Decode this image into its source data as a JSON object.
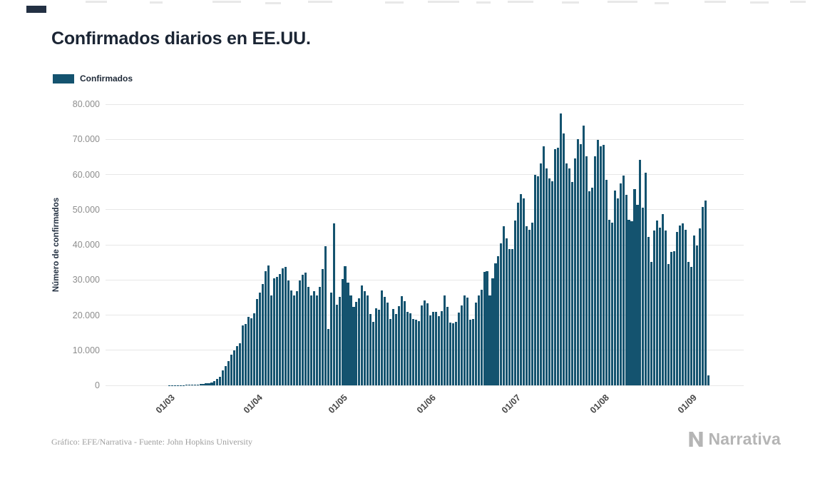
{
  "header": {
    "title": "Confirmados diarios en EE.UU."
  },
  "legend": {
    "label": "Confirmados",
    "swatch_color": "#14536f"
  },
  "chart_data": {
    "type": "bar",
    "title": "Confirmados diarios en EE.UU.",
    "ylabel": "Número de confirmados",
    "xlabel": "",
    "legend": [
      "Confirmados"
    ],
    "legend_position": "top-left",
    "grid": "horizontal",
    "ylim": [
      0,
      80000
    ],
    "bar_color": "#14536f",
    "grid_color": "#e7e7e7",
    "y_ticks": [
      {
        "value": 0,
        "label": "0"
      },
      {
        "value": 10000,
        "label": "10.000"
      },
      {
        "value": 20000,
        "label": "20.000"
      },
      {
        "value": 30000,
        "label": "30.000"
      },
      {
        "value": 40000,
        "label": "40.000"
      },
      {
        "value": 50000,
        "label": "50.000"
      },
      {
        "value": 60000,
        "label": "60.000"
      },
      {
        "value": 70000,
        "label": "70.000"
      },
      {
        "value": 80000,
        "label": "80.000"
      }
    ],
    "x_ticks": [
      {
        "label": "01/03",
        "day_index": 15
      },
      {
        "label": "01/04",
        "day_index": 46
      },
      {
        "label": "01/05",
        "day_index": 76
      },
      {
        "label": "01/06",
        "day_index": 107
      },
      {
        "label": "01/07",
        "day_index": 137
      },
      {
        "label": "01/08",
        "day_index": 168
      },
      {
        "label": "01/09",
        "day_index": 199
      }
    ],
    "series": [
      {
        "name": "Confirmados",
        "frequency": "daily",
        "start_date": "15/02/2020",
        "end_date": "06/09/2020",
        "values": [
          0,
          0,
          0,
          0,
          0,
          0,
          0,
          0,
          0,
          5,
          5,
          5,
          10,
          10,
          20,
          25,
          30,
          30,
          40,
          70,
          110,
          130,
          180,
          250,
          300,
          400,
          500,
          600,
          700,
          800,
          1300,
          1800,
          2500,
          4300,
          5500,
          7000,
          8800,
          10000,
          11200,
          12000,
          17000,
          17500,
          19500,
          19000,
          20500,
          24500,
          26500,
          28800,
          32400,
          34200,
          25500,
          30500,
          30800,
          31700,
          33300,
          33700,
          29800,
          27100,
          25500,
          26900,
          29900,
          31400,
          32000,
          28100,
          25500,
          26800,
          25500,
          28000,
          33000,
          39500,
          16000,
          26500,
          46000,
          23000,
          25100,
          30300,
          33900,
          29200,
          25500,
          22300,
          23800,
          24800,
          28400,
          26900,
          25600,
          20300,
          18100,
          22000,
          21500,
          27100,
          25200,
          23600,
          18900,
          21800,
          20300,
          22600,
          25400,
          23900,
          21000,
          20600,
          18900,
          18700,
          18300,
          22700,
          24200,
          23300,
          20000,
          21000,
          21000,
          19600,
          21100,
          25500,
          22300,
          17900,
          17600,
          18000,
          20700,
          22800,
          25600,
          25000,
          18600,
          18900,
          23600,
          25500,
          27200,
          32200,
          32400,
          25500,
          30500,
          34700,
          36800,
          40500,
          45300,
          41800,
          38700,
          38800,
          47000,
          52000,
          54500,
          53200,
          45300,
          44300,
          46300,
          60000,
          59400,
          63200,
          68000,
          61700,
          58800,
          58100,
          67300,
          67600,
          77300,
          71600,
          63200,
          61800,
          57800,
          64500,
          70100,
          68700,
          74000,
          65100,
          55300,
          56300,
          65200,
          69800,
          68000,
          68500,
          58400,
          47100,
          46300,
          55400,
          53200,
          57500,
          59700,
          54200,
          47100,
          46800,
          55900,
          51400,
          64100,
          50600,
          60600,
          42200,
          35100,
          44100,
          46900,
          44900,
          48700,
          44000,
          34500,
          37900,
          38200,
          43600,
          45500,
          46000,
          44200,
          35100,
          33800,
          42600,
          39700,
          44600,
          50700,
          52500,
          2800
        ]
      }
    ]
  },
  "footer": {
    "credit": "Gráfico: EFE/Narrativa - Fuente: John Hopkins University"
  },
  "brand": {
    "name": "Narrativa"
  }
}
